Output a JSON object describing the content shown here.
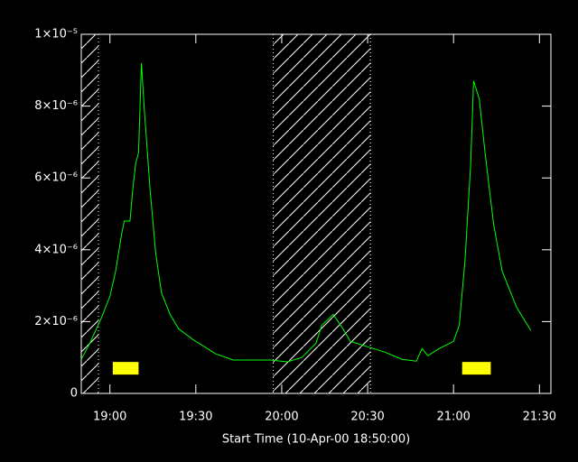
{
  "chart_data": {
    "type": "line",
    "x_label": "Start Time (10-Apr-00 18:50:00)",
    "x": [
      "18:50",
      "18:53",
      "18:57",
      "19:00",
      "19:02",
      "19:04",
      "19:05",
      "19:07",
      "19:08",
      "19:09",
      "19:10",
      "19:11",
      "19:12",
      "19:14",
      "19:16",
      "19:18",
      "19:21",
      "19:24",
      "19:29",
      "19:37",
      "19:43",
      "19:56",
      "20:02",
      "20:07",
      "20:12",
      "20:14",
      "20:18",
      "20:21",
      "20:24",
      "20:30",
      "20:36",
      "20:42",
      "20:47",
      "20:49",
      "20:51",
      "20:55",
      "21:00",
      "21:02",
      "21:04",
      "21:06",
      "21:07",
      "21:09",
      "21:11",
      "21:14",
      "21:17",
      "21:22",
      "21:27"
    ],
    "series": [
      {
        "color": "#00ff00",
        "values": [
          9.5e-07,
          1.4e-06,
          2.1e-06,
          2.7e-06,
          3.4e-06,
          4.4e-06,
          4.8e-06,
          4.8e-06,
          5.7e-06,
          6.4e-06,
          6.7e-06,
          9.2e-06,
          7.9e-06,
          5.7e-06,
          3.9e-06,
          2.8e-06,
          2.2e-06,
          1.8e-06,
          1.5e-06,
          1.1e-06,
          9.3e-07,
          9.3e-07,
          8.8e-07,
          1e-06,
          1.4e-06,
          1.9e-06,
          2.2e-06,
          1.85e-06,
          1.45e-06,
          1.3e-06,
          1.15e-06,
          9.5e-07,
          9e-07,
          1.25e-06,
          1.05e-06,
          1.25e-06,
          1.45e-06,
          1.9e-06,
          3.7e-06,
          6.4e-06,
          8.7e-06,
          8.2e-06,
          6.7e-06,
          4.7e-06,
          3.4e-06,
          2.4e-06,
          1.75e-06
        ]
      }
    ],
    "xlim": [
      "18:50",
      "21:34"
    ],
    "xticks": [
      "19:00",
      "19:30",
      "20:00",
      "20:30",
      "21:00",
      "21:30"
    ],
    "ylim": [
      0,
      1e-05
    ],
    "yticks": [
      0,
      {
        "value": 2e-06,
        "label": "2×10⁻⁶"
      },
      {
        "value": 4e-06,
        "label": "4×10⁻⁶"
      },
      {
        "value": 6e-06,
        "label": "6×10⁻⁶"
      },
      {
        "value": 8e-06,
        "label": "8×10⁻⁶"
      },
      {
        "value": 1e-05,
        "label": "1×10⁻⁵"
      }
    ],
    "shaded": [
      [
        "18:50",
        "18:56"
      ],
      [
        "19:57",
        "20:31"
      ]
    ],
    "markers": {
      "color": "#ffff00",
      "spans": [
        [
          "19:01",
          "19:10"
        ],
        [
          "21:03",
          "21:13"
        ]
      ],
      "level": 7e-07
    }
  }
}
